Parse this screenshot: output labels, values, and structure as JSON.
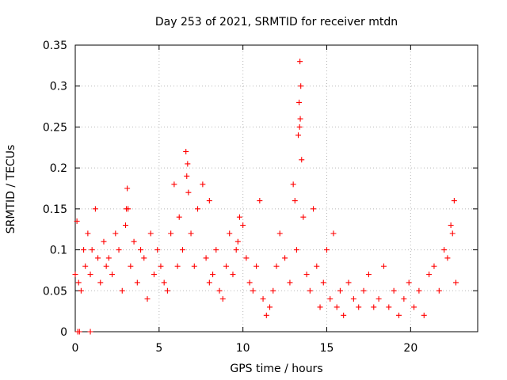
{
  "chart_data": {
    "type": "scatter",
    "title": "Day 253 of 2021, SRMTID for receiver mtdn",
    "xlabel": "GPS time / hours",
    "ylabel": "SRMTID / TECUs",
    "xlim": [
      0,
      24
    ],
    "ylim": [
      0,
      0.35
    ],
    "x_ticks": [
      0,
      5,
      10,
      15,
      20
    ],
    "x_tick_labels": [
      "0",
      "5",
      "10",
      "15",
      "20"
    ],
    "y_ticks": [
      0,
      0.05,
      0.1,
      0.15,
      0.2,
      0.25,
      0.3,
      0.35
    ],
    "y_tick_labels": [
      "0",
      "0.05",
      "0.1",
      "0.15",
      "0.2",
      "0.25",
      "0.3",
      "0.35"
    ],
    "grid": true,
    "marker": "plus",
    "color": "#ff0000",
    "series": [
      {
        "name": "SRMTID",
        "x": [
          0.0,
          0.1,
          0.2,
          0.35,
          0.5,
          0.6,
          0.75,
          0.9,
          1.0,
          1.2,
          1.35,
          1.5,
          1.7,
          1.85,
          2.0,
          2.2,
          2.4,
          2.6,
          2.8,
          3.0,
          3.1,
          3.15,
          3.3,
          3.5,
          3.7,
          3.9,
          4.1,
          4.3,
          4.5,
          4.7,
          4.9,
          5.1,
          5.3,
          5.5,
          5.7,
          5.9,
          6.1,
          6.2,
          6.4,
          6.6,
          6.7,
          6.75,
          6.9,
          7.1,
          7.3,
          7.6,
          7.8,
          8.0,
          8.2,
          8.4,
          8.6,
          8.8,
          9.0,
          9.2,
          9.4,
          9.6,
          9.8,
          10.0,
          10.2,
          10.4,
          10.6,
          10.8,
          11.0,
          11.2,
          11.4,
          11.6,
          11.8,
          12.0,
          12.2,
          12.5,
          12.8,
          13.0,
          13.1,
          13.2,
          13.3,
          13.35,
          13.4,
          13.45,
          13.5,
          13.6,
          13.8,
          14.0,
          14.2,
          14.4,
          14.6,
          14.8,
          15.0,
          15.2,
          15.4,
          15.6,
          15.8,
          16.0,
          16.3,
          16.6,
          16.9,
          17.2,
          17.5,
          17.8,
          18.1,
          18.4,
          18.7,
          19.0,
          19.3,
          19.6,
          19.9,
          20.2,
          20.5,
          20.8,
          21.1,
          21.4,
          21.7,
          22.0,
          22.2,
          22.4,
          22.5,
          22.6,
          22.7,
          0.15,
          0.25,
          0.9,
          3.05,
          6.65,
          8.0,
          9.7,
          13.42,
          13.38
        ],
        "y": [
          0.07,
          0.135,
          0.06,
          0.05,
          0.1,
          0.08,
          0.12,
          0.07,
          0.1,
          0.15,
          0.09,
          0.06,
          0.11,
          0.08,
          0.09,
          0.07,
          0.12,
          0.1,
          0.05,
          0.13,
          0.175,
          0.15,
          0.08,
          0.11,
          0.06,
          0.1,
          0.09,
          0.04,
          0.12,
          0.07,
          0.1,
          0.08,
          0.06,
          0.05,
          0.12,
          0.18,
          0.08,
          0.14,
          0.1,
          0.22,
          0.205,
          0.17,
          0.12,
          0.08,
          0.15,
          0.18,
          0.09,
          0.06,
          0.07,
          0.1,
          0.05,
          0.04,
          0.08,
          0.12,
          0.07,
          0.1,
          0.14,
          0.13,
          0.09,
          0.06,
          0.05,
          0.08,
          0.16,
          0.04,
          0.02,
          0.03,
          0.05,
          0.08,
          0.12,
          0.09,
          0.06,
          0.18,
          0.16,
          0.1,
          0.24,
          0.28,
          0.33,
          0.3,
          0.21,
          0.14,
          0.07,
          0.05,
          0.15,
          0.08,
          0.03,
          0.06,
          0.1,
          0.04,
          0.12,
          0.03,
          0.05,
          0.02,
          0.06,
          0.04,
          0.03,
          0.05,
          0.07,
          0.03,
          0.04,
          0.08,
          0.03,
          0.05,
          0.02,
          0.04,
          0.06,
          0.03,
          0.05,
          0.02,
          0.07,
          0.08,
          0.05,
          0.1,
          0.09,
          0.13,
          0.12,
          0.16,
          0.06,
          0.0,
          0.0,
          0.0,
          0.15,
          0.19,
          0.16,
          0.11,
          0.26,
          0.25
        ]
      }
    ]
  }
}
